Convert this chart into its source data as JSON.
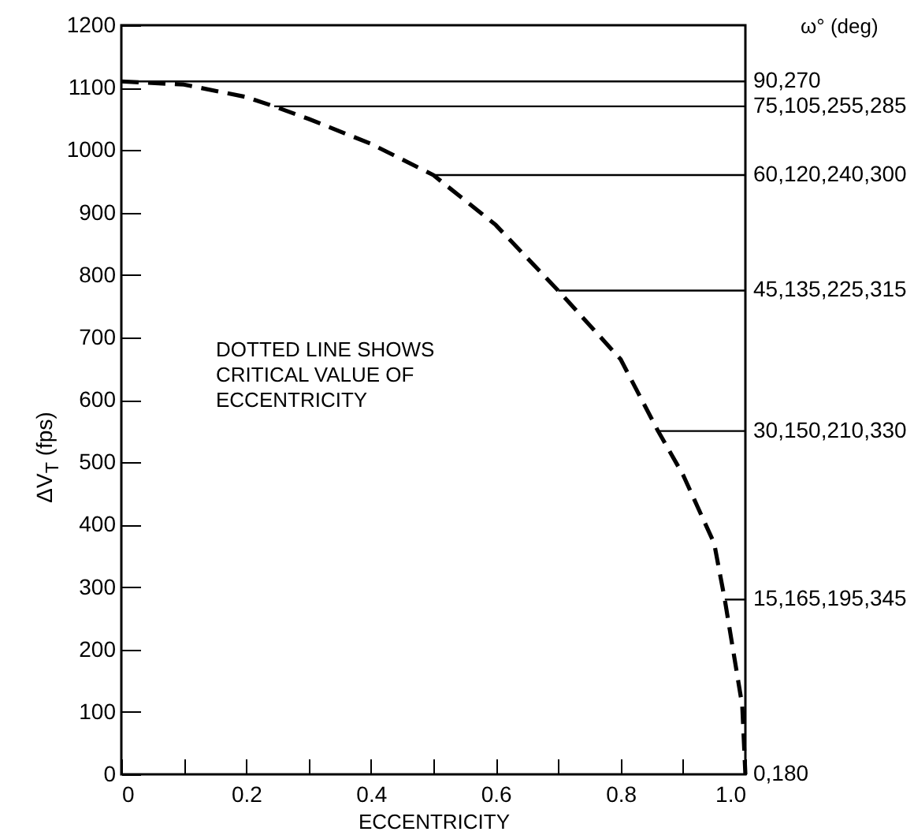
{
  "chart_data": {
    "type": "line",
    "xlabel": "ECCENTRICITY",
    "ylabel": "ΔV$_{T}$ (fps)",
    "xlim": [
      0,
      1.0
    ],
    "ylim": [
      0,
      1200
    ],
    "xticks": [
      0,
      {
        "value": 0.1,
        "label": null
      },
      0.2,
      {
        "value": 0.3,
        "label": null
      },
      0.4,
      {
        "value": 0.5,
        "label": null
      },
      0.6,
      {
        "value": 0.7,
        "label": null
      },
      0.8,
      {
        "value": 0.9,
        "label": null
      },
      {
        "value": 1.0,
        "label": "1.0"
      }
    ],
    "yticks": [
      0,
      100,
      200,
      300,
      400,
      500,
      600,
      700,
      800,
      900,
      1000,
      1100,
      1200
    ],
    "grid": false,
    "annotations": [
      "DOTTED LINE SHOWS\nCRITICAL VALUE OF\nECCENTRICITY",
      "ω° (deg)",
      {
        "text": "0,180",
        "x": 1.0,
        "y": 0
      }
    ],
    "series": [
      {
        "line_style": "dashed",
        "color": "#000000",
        "x": [
          0,
          0.1,
          0.2,
          0.245,
          0.3,
          0.4,
          0.5,
          0.6,
          0.7,
          0.8,
          0.86,
          0.9,
          0.95,
          0.967,
          0.995,
          1.0
        ],
        "values": [
          1110,
          1105,
          1085,
          1070,
          1050,
          1010,
          960,
          880,
          775,
          665,
          550,
          480,
          370,
          280,
          110,
          0
        ]
      },
      {
        "name": "90,270",
        "color": "#000000",
        "x": [
          0,
          1.0
        ],
        "values": [
          1110,
          1110
        ]
      },
      {
        "name": "75,105,255,285",
        "color": "#000000",
        "x": [
          0.245,
          1.0
        ],
        "values": [
          1070,
          1070
        ]
      },
      {
        "name": "60,120,240,300",
        "color": "#000000",
        "x": [
          0.5,
          1.0
        ],
        "values": [
          960,
          960
        ]
      },
      {
        "name": "45,135,225,315",
        "color": "#000000",
        "x": [
          0.7,
          1.0
        ],
        "values": [
          775,
          775
        ]
      },
      {
        "name": "30,150,210,330",
        "color": "#000000",
        "x": [
          0.86,
          1.0
        ],
        "values": [
          550,
          550
        ]
      },
      {
        "name": "15,165,195,345",
        "color": "#000000",
        "x": [
          0.967,
          1.0
        ],
        "values": [
          280,
          280
        ]
      }
    ]
  }
}
